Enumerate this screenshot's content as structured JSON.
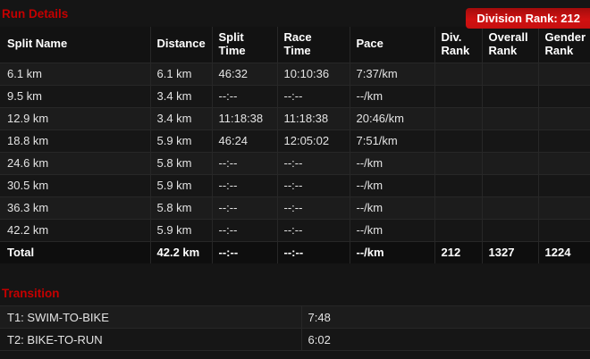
{
  "run": {
    "title": "Run Details",
    "badge": "Division Rank: 212",
    "headers": [
      "Split Name",
      "Distance",
      "Split\nTime",
      "Race\nTime",
      "Pace",
      "Div.\nRank",
      "Overall\nRank",
      "Gender\nRank"
    ],
    "rows": [
      [
        "6.1 km",
        "6.1 km",
        "46:32",
        "10:10:36",
        "7:37/km",
        "",
        "",
        ""
      ],
      [
        "9.5 km",
        "3.4 km",
        "--:--",
        "--:--",
        "--/km",
        "",
        "",
        ""
      ],
      [
        "12.9 km",
        "3.4 km",
        "11:18:38",
        "11:18:38",
        "20:46/km",
        "",
        "",
        ""
      ],
      [
        "18.8 km",
        "5.9 km",
        "46:24",
        "12:05:02",
        "7:51/km",
        "",
        "",
        ""
      ],
      [
        "24.6 km",
        "5.8 km",
        "--:--",
        "--:--",
        "--/km",
        "",
        "",
        ""
      ],
      [
        "30.5 km",
        "5.9 km",
        "--:--",
        "--:--",
        "--/km",
        "",
        "",
        ""
      ],
      [
        "36.3 km",
        "5.8 km",
        "--:--",
        "--:--",
        "--/km",
        "",
        "",
        ""
      ],
      [
        "42.2 km",
        "5.9 km",
        "--:--",
        "--:--",
        "--/km",
        "",
        "",
        ""
      ]
    ],
    "total": [
      "Total",
      "42.2 km",
      "--:--",
      "--:--",
      "--/km",
      "212",
      "1327",
      "1224"
    ]
  },
  "transition": {
    "title": "Transition",
    "rows": [
      {
        "label": "T1: SWIM-TO-BIKE",
        "time": "7:48"
      },
      {
        "label": "T2: BIKE-TO-RUN",
        "time": "6:02"
      }
    ]
  },
  "colors": {
    "accent_red": "#c40000",
    "badge_red": "#d11111",
    "row_dark": "#161616",
    "row_light": "#1c1c1c",
    "total_row": "#0e0e0e",
    "background": "#151515"
  }
}
